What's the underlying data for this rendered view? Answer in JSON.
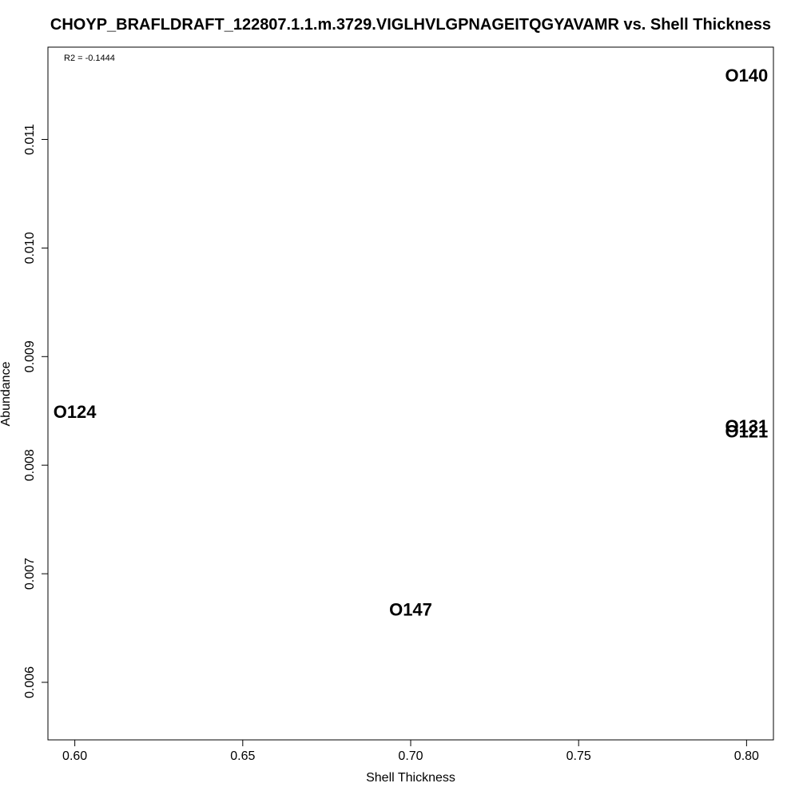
{
  "chart_data": {
    "type": "scatter",
    "title": "CHOYP_BRAFLDRAFT_122807.1.1.m.3729.VIGLHVLGPNAGEITQGYAVAMR vs. Shell Thickness",
    "xlabel": "Shell Thickness",
    "ylabel": "Abundance",
    "annotation": "R2 = -0.1444",
    "xlim": [
      0.592,
      0.808
    ],
    "ylim": [
      0.00547,
      0.01185
    ],
    "xticks": [
      0.6,
      0.65,
      0.7,
      0.75,
      0.8
    ],
    "xtick_labels": [
      "0.60",
      "0.65",
      "0.70",
      "0.75",
      "0.80"
    ],
    "yticks": [
      0.006,
      0.007,
      0.008,
      0.009,
      0.01,
      0.011
    ],
    "ytick_labels": [
      "0.006",
      "0.007",
      "0.008",
      "0.009",
      "0.010",
      "0.011"
    ],
    "grid": false,
    "points": [
      {
        "label": "O140",
        "x": 0.8,
        "y": 0.01159
      },
      {
        "label": "O124",
        "x": 0.6,
        "y": 0.00849
      },
      {
        "label": "O131",
        "x": 0.8,
        "y": 0.00836
      },
      {
        "label": "O121",
        "x": 0.8,
        "y": 0.00831
      },
      {
        "label": "O147",
        "x": 0.7,
        "y": 0.00667
      }
    ]
  }
}
